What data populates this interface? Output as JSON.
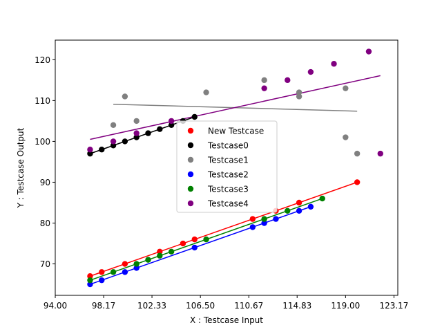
{
  "chart_data": {
    "type": "scatter",
    "title": "",
    "xlabel": "X : Testcase Input",
    "ylabel": "Y : Testcase Output",
    "xlim": [
      94.0,
      123.5
    ],
    "ylim": [
      62.3,
      124.8
    ],
    "xticks": [
      94.0,
      98.17,
      102.33,
      106.5,
      110.67,
      114.83,
      119.0,
      123.17
    ],
    "xtick_labels": [
      "94.00",
      "98.17",
      "102.33",
      "106.50",
      "110.67",
      "114.83",
      "119.00",
      "123.17"
    ],
    "yticks": [
      70,
      80,
      90,
      100,
      110,
      120
    ],
    "ytick_labels": [
      "70",
      "80",
      "90",
      "100",
      "110",
      "120"
    ],
    "grid": false,
    "legend_position": "center",
    "series": [
      {
        "name": "New Testcase",
        "color": "#ff0000",
        "points": [
          [
            97,
            67
          ],
          [
            98,
            68
          ],
          [
            100,
            70
          ],
          [
            103,
            73
          ],
          [
            105,
            75
          ],
          [
            106,
            76
          ],
          [
            111,
            81
          ],
          [
            113,
            83
          ],
          [
            115,
            85
          ],
          [
            120,
            90
          ]
        ],
        "fit": [
          [
            97,
            67
          ],
          [
            120,
            90
          ]
        ]
      },
      {
        "name": "Testcase0",
        "color": "#000000",
        "points": [
          [
            97,
            97
          ],
          [
            98,
            98
          ],
          [
            99,
            99
          ],
          [
            100,
            100
          ],
          [
            101,
            101
          ],
          [
            102,
            102
          ],
          [
            103,
            103
          ],
          [
            104,
            104
          ],
          [
            105,
            105
          ],
          [
            106,
            106
          ]
        ],
        "fit": [
          [
            97,
            97
          ],
          [
            106,
            106
          ]
        ]
      },
      {
        "name": "Testcase1",
        "color": "#808080",
        "points": [
          [
            99,
            104
          ],
          [
            100,
            111
          ],
          [
            101,
            105
          ],
          [
            107,
            112
          ],
          [
            112,
            115
          ],
          [
            115,
            111
          ],
          [
            115,
            112
          ],
          [
            119,
            113
          ],
          [
            119,
            101
          ],
          [
            120,
            97
          ]
        ],
        "fit": [
          [
            99,
            109.1
          ],
          [
            120,
            107.4
          ]
        ]
      },
      {
        "name": "Testcase2",
        "color": "#0000ff",
        "points": [
          [
            97,
            65
          ],
          [
            98,
            66
          ],
          [
            100,
            68
          ],
          [
            101,
            69
          ],
          [
            106,
            74
          ],
          [
            111,
            79
          ],
          [
            112,
            80
          ],
          [
            113,
            81
          ],
          [
            115,
            83
          ],
          [
            116,
            84
          ]
        ],
        "fit": [
          [
            97,
            65
          ],
          [
            116,
            84
          ]
        ]
      },
      {
        "name": "Testcase3",
        "color": "#008000",
        "points": [
          [
            97,
            66
          ],
          [
            99,
            68
          ],
          [
            101,
            70
          ],
          [
            102,
            71
          ],
          [
            103,
            72
          ],
          [
            104,
            73
          ],
          [
            107,
            76
          ],
          [
            112,
            81
          ],
          [
            114,
            83
          ],
          [
            117,
            86
          ]
        ],
        "fit": [
          [
            97,
            66
          ],
          [
            117,
            86
          ]
        ]
      },
      {
        "name": "Testcase4",
        "color": "#800080",
        "points": [
          [
            97,
            98
          ],
          [
            99,
            100
          ],
          [
            101,
            102
          ],
          [
            104,
            105
          ],
          [
            112,
            113
          ],
          [
            114,
            115
          ],
          [
            116,
            117
          ],
          [
            118,
            119
          ],
          [
            121,
            122
          ],
          [
            122,
            97
          ]
        ],
        "fit": [
          [
            97,
            100.5
          ],
          [
            122,
            116.1
          ]
        ]
      }
    ]
  }
}
